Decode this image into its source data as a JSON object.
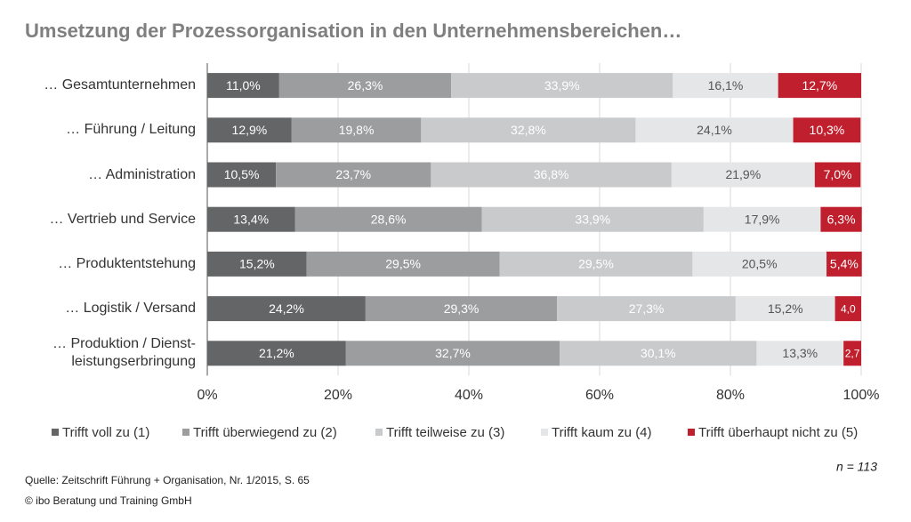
{
  "chart_data": {
    "type": "stacked-bar-horizontal",
    "title": "Umsetzung der Prozessorganisation in den Unternehmensbereichen…",
    "categories": [
      "… Gesamtunternehmen",
      "… Führung / Leitung",
      "… Administration",
      "… Vertrieb und Service",
      "… Produktentstehung",
      "… Logistik / Versand",
      "… Produktion / Dienst-\nleistungserbringung"
    ],
    "series": [
      {
        "name": "Trifft voll zu (1)",
        "color": "#646567",
        "values": [
          11.0,
          12.9,
          10.5,
          13.4,
          15.2,
          24.2,
          21.2
        ],
        "value_labels": [
          "11,0%",
          "12,9%",
          "10,5%",
          "13,4%",
          "15,2%",
          "24,2%",
          "21,2%"
        ]
      },
      {
        "name": "Trifft überwiegend zu (2)",
        "color": "#9c9d9f",
        "values": [
          26.3,
          19.8,
          23.7,
          28.6,
          29.5,
          29.3,
          32.7
        ],
        "value_labels": [
          "26,3%",
          "19,8%",
          "23,7%",
          "28,6%",
          "29,5%",
          "29,3%",
          "32,7%"
        ]
      },
      {
        "name": "Trifft teilweise zu (3)",
        "color": "#c9cacb",
        "values": [
          33.9,
          32.8,
          36.8,
          33.9,
          29.5,
          27.3,
          30.1
        ],
        "value_labels": [
          "33,9%",
          "32,8%",
          "36,8%",
          "33,9%",
          "29,5%",
          "27,3%",
          "30,1%"
        ]
      },
      {
        "name": "Trifft kaum zu (4)",
        "color": "#e5e6e7",
        "values": [
          16.1,
          24.1,
          21.9,
          17.9,
          20.5,
          15.2,
          13.3
        ],
        "value_labels": [
          "16,1%",
          "24,1%",
          "21,9%",
          "17,9%",
          "20,5%",
          "15,2%",
          "13,3%"
        ]
      },
      {
        "name": "Trifft überhaupt nicht zu (5)",
        "color": "#c0202e",
        "values": [
          12.7,
          10.3,
          7.0,
          6.3,
          5.4,
          4.0,
          2.7
        ],
        "value_labels": [
          "12,7%",
          "10,3%",
          "7,0%",
          "6,3%",
          "5,4%",
          "4,0",
          "2,7"
        ]
      }
    ],
    "xlim": [
      0,
      100
    ],
    "xticks": [
      {
        "value": 0,
        "label": "0%"
      },
      {
        "value": 20,
        "label": "20%"
      },
      {
        "value": 40,
        "label": "40%"
      },
      {
        "value": 60,
        "label": "60%"
      },
      {
        "value": 80,
        "label": "80%"
      },
      {
        "value": 100,
        "label": "100%"
      }
    ],
    "grid": true,
    "note": "n = 113",
    "source": "Quelle: Zeitschrift Führung + Organisation, Nr. 1/2015, S. 65",
    "copyright": "© ibo Beratung und Training GmbH"
  }
}
